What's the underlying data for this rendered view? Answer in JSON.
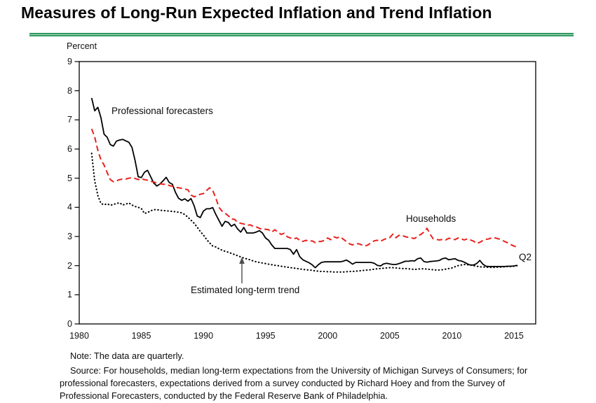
{
  "page": {
    "title": "Measures of Long-Run Expected Inflation and Trend Inflation",
    "accent_green": "#2f9a60"
  },
  "chart": {
    "y_axis_label": "Percent",
    "y_ticks": [
      0,
      1,
      2,
      3,
      4,
      5,
      6,
      7,
      8,
      9
    ],
    "x_ticks": [
      1980,
      1985,
      1990,
      1995,
      2000,
      2005,
      2010,
      2015
    ],
    "annotations": {
      "professional": "Professional forecasters",
      "households": "Households",
      "trend": "Estimated long-term trend",
      "latest_quarter": "Q2"
    }
  },
  "notes": {
    "note": "Note:  The data are quarterly.",
    "source": "Source:  For households, median long-term expectations from the University of Michigan Surveys of Consumers; for professional forecasters, expectations derived from a survey conducted by Richard Hoey and from the Survey of Professional Forecasters, conducted by the Federal Reserve Bank of Philadelphia."
  },
  "chart_data": {
    "type": "line",
    "title": "Measures of Long-Run Expected Inflation and Trend Inflation",
    "xlabel": "",
    "ylabel": "Percent",
    "ylim": [
      0,
      9
    ],
    "xlim": [
      1980,
      2016.75
    ],
    "grid": false,
    "legend_position": "inline-annotations",
    "frequency": "quarterly",
    "x_start": 1981.0,
    "x_step": 0.25,
    "last_point_label": "Q2",
    "series": [
      {
        "name": "Professional forecasters",
        "style": "solid",
        "color": "#000000",
        "values": [
          7.75,
          7.31,
          7.43,
          7.07,
          6.51,
          6.4,
          6.15,
          6.1,
          6.27,
          6.31,
          6.33,
          6.28,
          6.23,
          6.05,
          5.6,
          5.05,
          5.02,
          5.2,
          5.27,
          5.05,
          4.83,
          4.73,
          4.8,
          4.91,
          5.03,
          4.85,
          4.79,
          4.51,
          4.31,
          4.24,
          4.29,
          4.21,
          4.3,
          4.05,
          3.7,
          3.65,
          3.87,
          3.95,
          3.95,
          3.99,
          3.75,
          3.55,
          3.35,
          3.52,
          3.48,
          3.35,
          3.42,
          3.26,
          3.15,
          3.31,
          3.12,
          3.12,
          3.12,
          3.15,
          3.2,
          3.12,
          2.95,
          2.87,
          2.71,
          2.59,
          2.59,
          2.59,
          2.59,
          2.59,
          2.55,
          2.39,
          2.55,
          2.31,
          2.2,
          2.15,
          2.1,
          2.03,
          1.93,
          2.03,
          2.11,
          2.13,
          2.13,
          2.13,
          2.13,
          2.13,
          2.13,
          2.15,
          2.19,
          2.13,
          2.05,
          2.11,
          2.11,
          2.11,
          2.11,
          2.11,
          2.11,
          2.08,
          2.01,
          1.99,
          2.06,
          2.08,
          2.06,
          2.04,
          2.04,
          2.07,
          2.11,
          2.15,
          2.15,
          2.17,
          2.16,
          2.24,
          2.26,
          2.14,
          2.12,
          2.14,
          2.15,
          2.16,
          2.18,
          2.24,
          2.26,
          2.2,
          2.22,
          2.24,
          2.18,
          2.16,
          2.12,
          2.06,
          2.02,
          2.02,
          2.07,
          2.18,
          2.05,
          1.98,
          1.97,
          1.97,
          1.97,
          1.97,
          1.97,
          1.97,
          1.98,
          1.98,
          1.99,
          2.01
        ]
      },
      {
        "name": "Households",
        "style": "dashed",
        "color": "#e8211c",
        "values": [
          6.69,
          6.41,
          5.95,
          5.63,
          5.45,
          5.19,
          4.95,
          4.88,
          4.91,
          4.95,
          4.97,
          4.97,
          5.0,
          5.02,
          4.99,
          4.95,
          4.99,
          4.95,
          4.93,
          4.89,
          4.87,
          4.83,
          4.81,
          4.79,
          4.79,
          4.75,
          4.72,
          4.69,
          4.67,
          4.65,
          4.63,
          4.6,
          4.42,
          4.36,
          4.4,
          4.45,
          4.47,
          4.58,
          4.67,
          4.58,
          4.31,
          4.0,
          3.87,
          3.8,
          3.71,
          3.6,
          3.59,
          3.49,
          3.45,
          3.43,
          3.38,
          3.4,
          3.35,
          3.33,
          3.28,
          3.24,
          3.25,
          3.23,
          3.15,
          3.23,
          3.15,
          3.07,
          3.11,
          2.99,
          2.95,
          2.91,
          2.95,
          2.87,
          2.83,
          2.87,
          2.83,
          2.85,
          2.79,
          2.83,
          2.83,
          2.87,
          2.95,
          2.89,
          2.99,
          2.95,
          2.99,
          2.91,
          2.83,
          2.75,
          2.71,
          2.75,
          2.75,
          2.71,
          2.67,
          2.71,
          2.79,
          2.85,
          2.87,
          2.83,
          2.89,
          2.93,
          2.96,
          3.08,
          2.96,
          3.04,
          3.04,
          2.99,
          2.97,
          2.95,
          2.93,
          3.01,
          3.07,
          3.15,
          3.28,
          3.08,
          2.92,
          2.9,
          2.88,
          2.9,
          2.88,
          2.94,
          2.92,
          2.89,
          2.95,
          2.92,
          2.88,
          2.92,
          2.88,
          2.84,
          2.76,
          2.8,
          2.86,
          2.9,
          2.92,
          2.96,
          2.95,
          2.92,
          2.88,
          2.83,
          2.78,
          2.72,
          2.67,
          2.63
        ]
      },
      {
        "name": "Estimated long-term trend",
        "style": "dotted",
        "color": "#000000",
        "values": [
          5.85,
          4.9,
          4.4,
          4.13,
          4.09,
          4.12,
          4.07,
          4.1,
          4.13,
          4.16,
          4.08,
          4.11,
          4.15,
          4.08,
          4.03,
          4.0,
          3.96,
          3.79,
          3.82,
          3.88,
          3.92,
          3.92,
          3.9,
          3.89,
          3.88,
          3.87,
          3.86,
          3.85,
          3.83,
          3.81,
          3.75,
          3.66,
          3.56,
          3.45,
          3.32,
          3.17,
          3.05,
          2.9,
          2.78,
          2.67,
          2.64,
          2.58,
          2.53,
          2.49,
          2.46,
          2.42,
          2.38,
          2.34,
          2.3,
          2.26,
          2.23,
          2.2,
          2.16,
          2.13,
          2.11,
          2.09,
          2.07,
          2.05,
          2.03,
          2.01,
          2.0,
          1.98,
          1.96,
          1.95,
          1.93,
          1.92,
          1.9,
          1.89,
          1.87,
          1.86,
          1.85,
          1.84,
          1.82,
          1.81,
          1.8,
          1.8,
          1.79,
          1.79,
          1.78,
          1.78,
          1.78,
          1.78,
          1.79,
          1.8,
          1.8,
          1.81,
          1.82,
          1.83,
          1.84,
          1.85,
          1.86,
          1.88,
          1.89,
          1.9,
          1.91,
          1.92,
          1.93,
          1.93,
          1.92,
          1.91,
          1.9,
          1.9,
          1.89,
          1.88,
          1.87,
          1.88,
          1.89,
          1.89,
          1.88,
          1.87,
          1.86,
          1.85,
          1.85,
          1.86,
          1.88,
          1.9,
          1.92,
          1.96,
          2.0,
          2.02,
          2.04,
          2.03,
          2.02,
          2.0,
          1.98,
          1.96,
          1.95,
          1.95,
          1.94,
          1.94,
          1.94,
          1.95,
          1.95,
          1.96,
          1.97,
          1.97,
          1.98,
          2.0
        ]
      }
    ]
  }
}
